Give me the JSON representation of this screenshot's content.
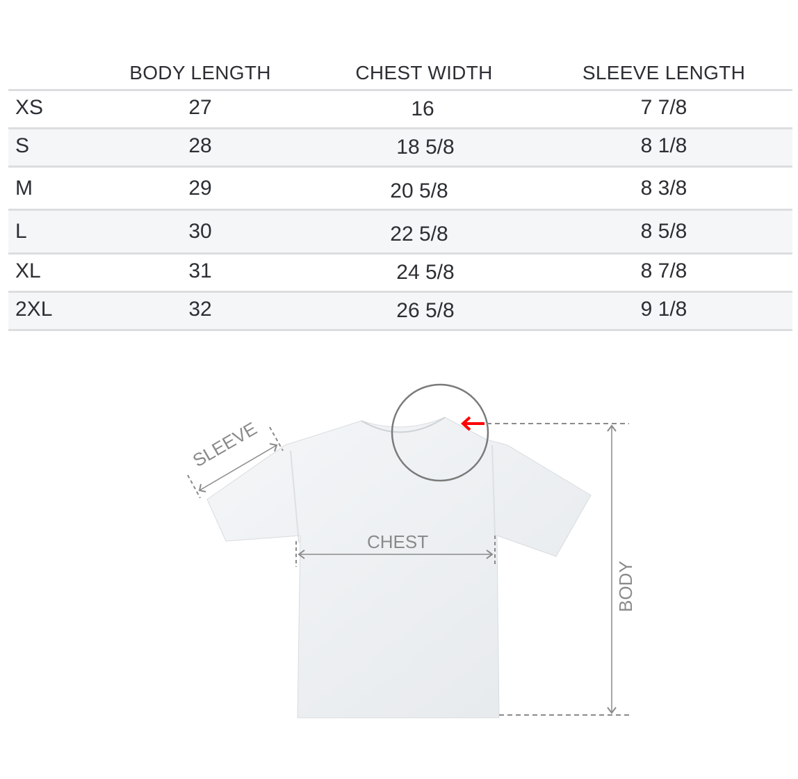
{
  "table": {
    "columns": [
      "",
      "BODY LENGTH",
      "CHEST WIDTH",
      "SLEEVE LENGTH"
    ],
    "rows": [
      {
        "size": "XS",
        "body": "27",
        "chest": "16",
        "sleeve": "7 7/8"
      },
      {
        "size": "S",
        "body": "28",
        "chest": "18 5/8",
        "sleeve": "8 1/8"
      },
      {
        "size": "M",
        "body": "29",
        "chest": "20 5/8",
        "sleeve": "8 3/8"
      },
      {
        "size": "L",
        "body": "30",
        "chest": "22 5/8",
        "sleeve": "8 5/8"
      },
      {
        "size": "XL",
        "body": "31",
        "chest": "24 5/8",
        "sleeve": "8 7/8"
      },
      {
        "size": "2XL",
        "body": "32",
        "chest": "26 5/8",
        "sleeve": "9 1/8"
      }
    ]
  },
  "diagram": {
    "sleeve_label": "SLEEVE",
    "chest_label": "CHEST",
    "body_label": "BODY",
    "arrow_color": "#ff0000",
    "line_color": "#8a8a8a"
  }
}
